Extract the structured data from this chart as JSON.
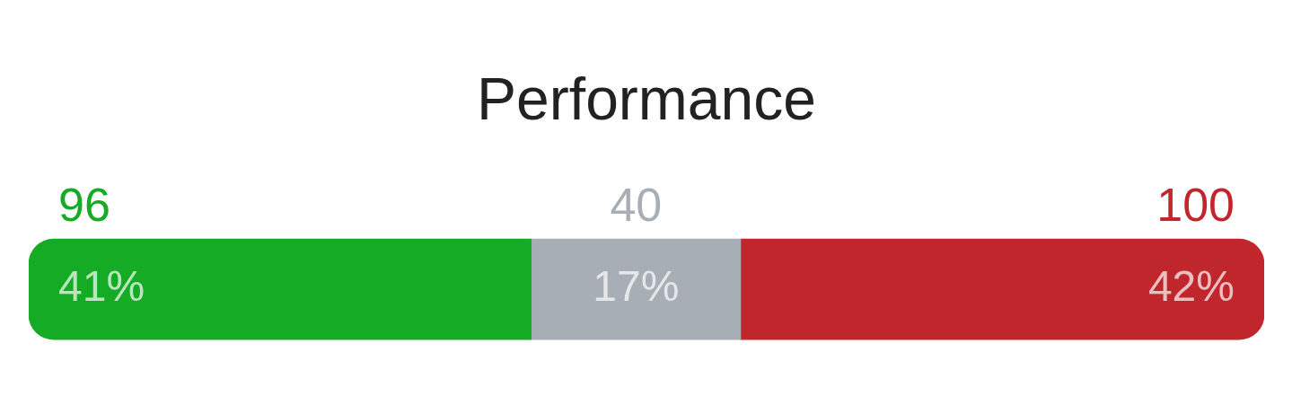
{
  "chart_data": {
    "type": "bar",
    "title": "Performance",
    "orientation": "horizontal",
    "stacked": true,
    "categories": [
      null
    ],
    "series": [
      {
        "color": "#16ab24",
        "values": [
          96
        ]
      },
      {
        "color": "#a8aeb6",
        "values": [
          40
        ]
      },
      {
        "color": "#c0272d",
        "values": [
          100
        ]
      }
    ],
    "data_labels": true,
    "annotations": [
      "41%",
      "17%",
      "42%"
    ],
    "legend": false
  }
}
